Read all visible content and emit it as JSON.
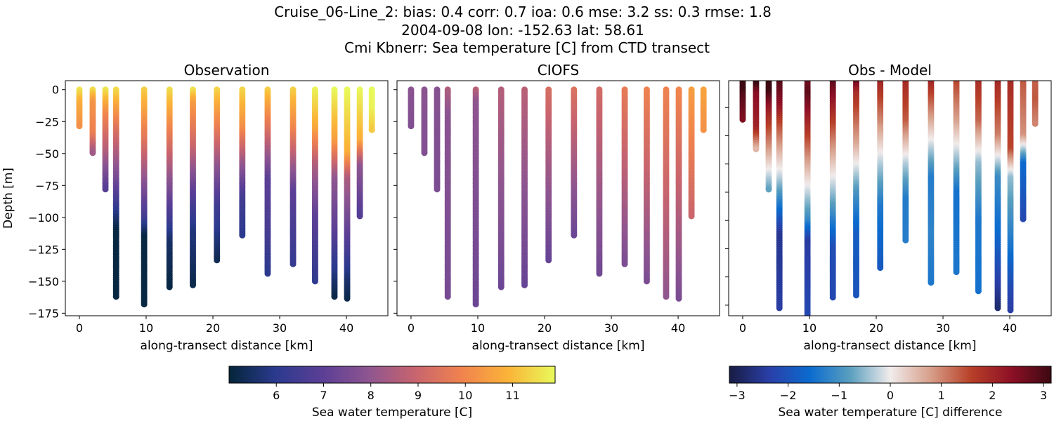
{
  "title_lines": [
    "Cruise_06-Line_2: bias: 0.4  corr: 0.7  ioa: 0.6  mse: 3.2  ss: 0.3  rmse: 1.8",
    "2004-09-08 lon: -152.63 lat: 58.61",
    "Cmi Kbnerr: Sea temperature [C] from CTD transect"
  ],
  "chart_data": [
    {
      "type": "scatter",
      "title": "Observation",
      "xlabel": "along-transect distance [km]",
      "ylabel": "Depth [m]",
      "xlim": [
        -2.1,
        46.2
      ],
      "ylim": [
        -177,
        7
      ],
      "xticks": [
        0,
        10,
        20,
        30,
        40
      ],
      "yticks": [
        0,
        -25,
        -50,
        -75,
        -100,
        -125,
        -150,
        -175
      ],
      "color_field": "obs",
      "colormap": "thermal"
    },
    {
      "type": "scatter",
      "title": "CIOFS",
      "xlabel": "along-transect distance [km]",
      "xlim": [
        -2.1,
        46.2
      ],
      "ylim": [
        -177,
        7
      ],
      "xticks": [
        0,
        10,
        20,
        30,
        40
      ],
      "yticks": [
        0,
        -25,
        -50,
        -75,
        -100,
        -125,
        -150,
        -175
      ],
      "color_field": "model",
      "colormap": "thermal"
    },
    {
      "type": "scatter",
      "title": "Obs - Model",
      "xlabel": "along-transect distance [km]",
      "xlim": [
        -2.1,
        46.2
      ],
      "ylim": [
        -167.5,
        -1
      ],
      "xticks": [
        0,
        10,
        20,
        30,
        40
      ],
      "yticks": [
        -20,
        -40,
        -60,
        -80,
        -100,
        -120,
        -140,
        -160
      ],
      "color_field": "diff",
      "colormap": "balance"
    }
  ],
  "profiles": [
    {
      "x": 0.0,
      "depth": 29,
      "obs": [
        [
          0,
          11.6
        ],
        [
          10,
          10.8
        ],
        [
          29,
          10.2
        ]
      ],
      "model": [
        [
          0,
          7.9
        ],
        [
          29,
          7.7
        ]
      ]
    },
    {
      "x": 2.0,
      "depth": 50,
      "obs": [
        [
          0,
          11.5
        ],
        [
          10,
          10.3
        ],
        [
          35,
          9.8
        ],
        [
          50,
          8.2
        ]
      ],
      "model": [
        [
          0,
          7.9
        ],
        [
          50,
          7.7
        ]
      ]
    },
    {
      "x": 3.9,
      "depth": 79,
      "obs": [
        [
          0,
          11.6
        ],
        [
          20,
          10
        ],
        [
          50,
          8.5
        ],
        [
          79,
          6.8
        ]
      ],
      "model": [
        [
          0,
          7.8
        ],
        [
          79,
          7.6
        ]
      ]
    },
    {
      "x": 5.5,
      "depth": 162,
      "obs": [
        [
          0,
          11.5
        ],
        [
          30,
          9.5
        ],
        [
          70,
          7.5
        ],
        [
          95,
          6
        ],
        [
          110,
          5.1
        ],
        [
          162,
          5.1
        ]
      ],
      "model": [
        [
          0,
          8.5
        ],
        [
          20,
          7.9
        ],
        [
          162,
          7.5
        ]
      ]
    },
    {
      "x": 9.7,
      "depth": 168,
      "obs": [
        [
          0,
          11.3
        ],
        [
          40,
          9.5
        ],
        [
          70,
          8
        ],
        [
          100,
          6.5
        ],
        [
          115,
          5.1
        ],
        [
          168,
          5.1
        ]
      ],
      "model": [
        [
          0,
          8.7
        ],
        [
          10,
          8
        ],
        [
          168,
          7.3
        ]
      ]
    },
    {
      "x": 13.5,
      "depth": 155,
      "obs": [
        [
          0,
          11.5
        ],
        [
          30,
          10
        ],
        [
          60,
          8.5
        ],
        [
          90,
          7
        ],
        [
          120,
          5.5
        ],
        [
          155,
          5.1
        ]
      ],
      "model": [
        [
          0,
          8.6
        ],
        [
          155,
          7.3
        ]
      ]
    },
    {
      "x": 17.0,
      "depth": 154,
      "obs": [
        [
          0,
          11.6
        ],
        [
          10,
          10.5
        ],
        [
          45,
          9
        ],
        [
          80,
          7
        ],
        [
          110,
          5.8
        ],
        [
          154,
          5.2
        ]
      ],
      "model": [
        [
          0,
          8.7
        ],
        [
          154,
          7.2
        ]
      ]
    },
    {
      "x": 20.6,
      "depth": 134,
      "obs": [
        [
          0,
          11.4
        ],
        [
          30,
          9.8
        ],
        [
          60,
          8
        ],
        [
          90,
          6.5
        ],
        [
          134,
          5.3
        ]
      ],
      "model": [
        [
          0,
          9.3
        ],
        [
          60,
          8.3
        ],
        [
          134,
          7.2
        ]
      ]
    },
    {
      "x": 24.4,
      "depth": 114,
      "obs": [
        [
          0,
          11.4
        ],
        [
          30,
          10.2
        ],
        [
          60,
          8
        ],
        [
          85,
          6.5
        ],
        [
          114,
          6
        ]
      ],
      "model": [
        [
          0,
          9.4
        ],
        [
          114,
          7.3
        ]
      ]
    },
    {
      "x": 28.2,
      "depth": 144,
      "obs": [
        [
          0,
          11.3
        ],
        [
          30,
          9.5
        ],
        [
          70,
          7
        ],
        [
          110,
          6.6
        ],
        [
          144,
          6
        ]
      ],
      "model": [
        [
          0,
          9.2
        ],
        [
          144,
          7.4
        ]
      ]
    },
    {
      "x": 32.0,
      "depth": 137,
      "obs": [
        [
          0,
          11.3
        ],
        [
          30,
          10
        ],
        [
          50,
          8.8
        ],
        [
          80,
          7
        ],
        [
          137,
          6.2
        ]
      ],
      "model": [
        [
          0,
          9.7
        ],
        [
          137,
          7.6
        ]
      ]
    },
    {
      "x": 35.3,
      "depth": 151,
      "obs": [
        [
          0,
          11.8
        ],
        [
          30,
          10.7
        ],
        [
          60,
          8.5
        ],
        [
          100,
          7
        ],
        [
          151,
          6.1
        ]
      ],
      "model": [
        [
          0,
          9.9
        ],
        [
          151,
          7.6
        ]
      ]
    },
    {
      "x": 38.2,
      "depth": 162,
      "obs": [
        [
          0,
          11.9
        ],
        [
          40,
          10.5
        ],
        [
          70,
          8
        ],
        [
          110,
          7
        ],
        [
          140,
          6
        ],
        [
          162,
          5.2
        ]
      ],
      "model": [
        [
          0,
          9.9
        ],
        [
          162,
          8
        ]
      ]
    },
    {
      "x": 40.1,
      "depth": 164,
      "obs": [
        [
          0,
          11.9
        ],
        [
          50,
          10.8
        ],
        [
          70,
          8.5
        ],
        [
          120,
          6.8
        ],
        [
          150,
          5.6
        ],
        [
          164,
          5.2
        ]
      ],
      "model": [
        [
          0,
          10
        ],
        [
          164,
          7.6
        ]
      ]
    },
    {
      "x": 42.0,
      "depth": 99,
      "obs": [
        [
          0,
          11.9
        ],
        [
          40,
          10.8
        ],
        [
          60,
          8
        ],
        [
          99,
          6.8
        ]
      ],
      "model": [
        [
          0,
          10.5
        ],
        [
          99,
          9
        ]
      ]
    },
    {
      "x": 43.8,
      "depth": 32,
      "obs": [
        [
          0,
          11.9
        ],
        [
          15,
          11.8
        ],
        [
          32,
          11.2
        ]
      ],
      "model": [
        [
          0,
          10.6
        ],
        [
          32,
          10.2
        ]
      ]
    }
  ],
  "colorbars": [
    {
      "label": "Sea water temperature [C]",
      "range": [
        5.0,
        11.9
      ],
      "ticks": [
        6,
        7,
        8,
        9,
        10,
        11
      ],
      "colormap": "thermal"
    },
    {
      "label": "Sea water temperature [C] difference",
      "range": [
        -3.15,
        3.15
      ],
      "ticks": [
        -3,
        -2,
        -1,
        0,
        1,
        2,
        3
      ],
      "colormap": "balance"
    }
  ],
  "colormaps": {
    "thermal": [
      "#04253a",
      "#2b3a8e",
      "#5b3f96",
      "#8e5590",
      "#c8646e",
      "#f0834e",
      "#fbb438",
      "#e8fa5b"
    ],
    "balance": [
      "#181c43",
      "#2a3fa8",
      "#0b6bcf",
      "#5a9fbf",
      "#f1ecec",
      "#d79f8a",
      "#b84028",
      "#8e1026",
      "#3c0912"
    ]
  }
}
